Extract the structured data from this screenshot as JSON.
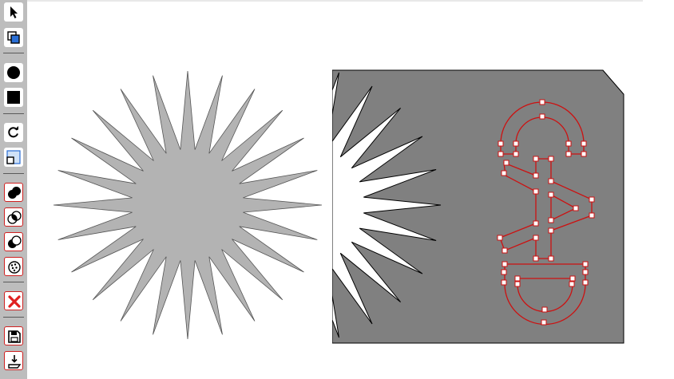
{
  "app": {
    "name": ""
  },
  "toolbar": {
    "tools": [
      {
        "id": "select",
        "icon": "arrow-pointer-icon"
      },
      {
        "id": "copy",
        "icon": "duplicate-icon"
      },
      {
        "id": "circle",
        "icon": "circle-icon"
      },
      {
        "id": "rectangle",
        "icon": "square-icon"
      },
      {
        "id": "rotate",
        "icon": "rotate-icon"
      },
      {
        "id": "scale",
        "icon": "scale-icon"
      },
      {
        "id": "union",
        "icon": "union-icon"
      },
      {
        "id": "intersection",
        "icon": "intersection-icon"
      },
      {
        "id": "difference",
        "icon": "difference-icon"
      },
      {
        "id": "xor",
        "icon": "xor-icon"
      },
      {
        "id": "delete",
        "icon": "delete-x-icon"
      },
      {
        "id": "save",
        "icon": "save-icon"
      },
      {
        "id": "export",
        "icon": "export-icon"
      }
    ]
  },
  "canvas": {
    "colors": {
      "star_fill": "#b3b3b3",
      "plate_fill": "#808080",
      "selection": "#cc1111"
    },
    "selected_text": "CAD"
  }
}
